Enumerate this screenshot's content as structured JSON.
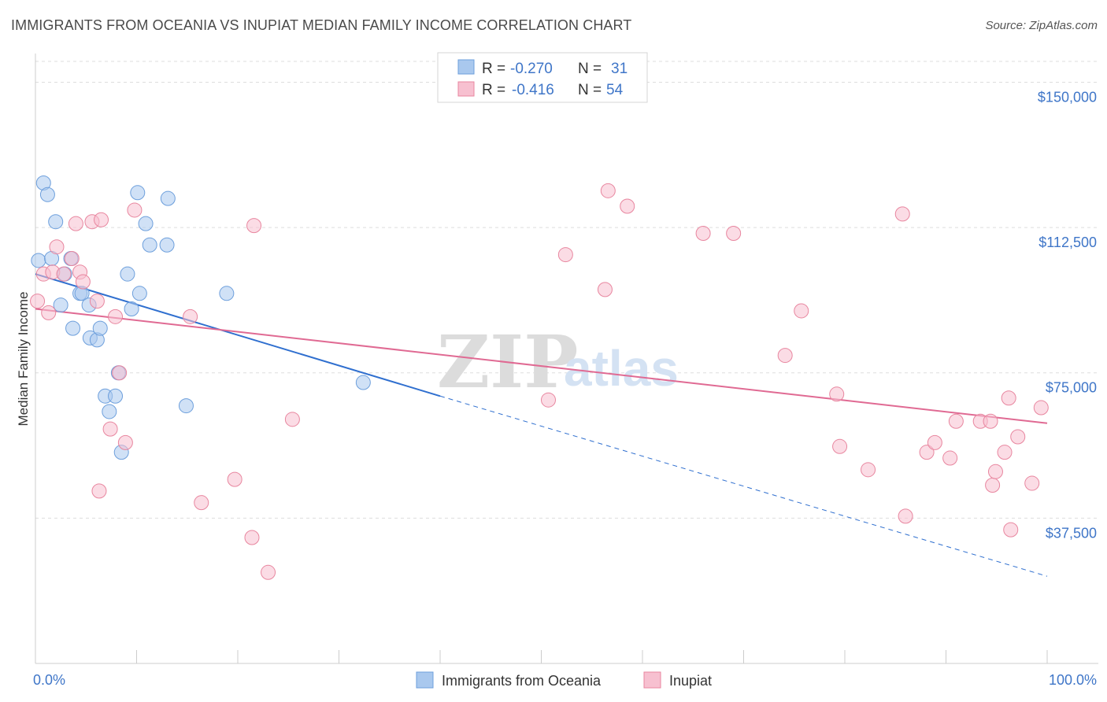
{
  "chart_data": {
    "type": "scatter",
    "title": "IMMIGRANTS FROM OCEANIA VS INUPIAT MEDIAN FAMILY INCOME CORRELATION CHART",
    "source": "Source: ZipAtlas.com",
    "xlabel": "",
    "ylabel": "Median Family Income",
    "xlim": [
      0,
      100
    ],
    "ylim": [
      0,
      157000
    ],
    "x_tick_labels": [
      "0.0%",
      "100.0%"
    ],
    "y_ticks": [
      37500,
      75000,
      112500,
      150000
    ],
    "y_tick_labels": [
      "$37,500",
      "$75,000",
      "$112,500",
      "$150,000"
    ],
    "watermark": {
      "part1": "ZIP",
      "part2": "atlas"
    },
    "legend": {
      "rows": [
        {
          "r_label": "R =",
          "r_value": "-0.270",
          "n_label": "N =",
          "n_value": "31"
        },
        {
          "r_label": "R =",
          "r_value": "-0.416",
          "n_label": "N =",
          "n_value": "54"
        }
      ]
    },
    "series": [
      {
        "name": "Immigrants from Oceania",
        "color": "#a9c8ee",
        "stroke": "#6d9fdc",
        "line_color": "#2f6fcf",
        "trend": {
          "x0": 0,
          "y0": 100500,
          "x1": 40,
          "y1": 69000,
          "dash_to_x": 100,
          "dash_to_y": 22500
        },
        "points": [
          [
            0.3,
            104000
          ],
          [
            0.8,
            124000
          ],
          [
            1.2,
            121000
          ],
          [
            1.6,
            104500
          ],
          [
            2.0,
            114000
          ],
          [
            2.5,
            92500
          ],
          [
            2.9,
            100500
          ],
          [
            3.5,
            104500
          ],
          [
            3.7,
            86500
          ],
          [
            4.4,
            95500
          ],
          [
            4.6,
            95500
          ],
          [
            5.3,
            92500
          ],
          [
            5.4,
            84000
          ],
          [
            6.1,
            83500
          ],
          [
            6.4,
            86500
          ],
          [
            6.9,
            69000
          ],
          [
            7.3,
            65000
          ],
          [
            7.9,
            69000
          ],
          [
            8.2,
            75000
          ],
          [
            8.5,
            54500
          ],
          [
            9.1,
            100500
          ],
          [
            9.5,
            91500
          ],
          [
            10.1,
            121500
          ],
          [
            10.3,
            95500
          ],
          [
            10.9,
            113500
          ],
          [
            11.3,
            108000
          ],
          [
            13.1,
            120000
          ],
          [
            13.0,
            108000
          ],
          [
            14.9,
            66500
          ],
          [
            18.9,
            95500
          ],
          [
            32.4,
            72500
          ]
        ]
      },
      {
        "name": "Inupiat",
        "color": "#f7c0d0",
        "stroke": "#e8869f",
        "line_color": "#e06a93",
        "trend": {
          "x0": 0,
          "y0": 91500,
          "x1": 100,
          "y1": 62000
        },
        "points": [
          [
            0.2,
            93500
          ],
          [
            0.8,
            100500
          ],
          [
            1.3,
            90500
          ],
          [
            1.7,
            101000
          ],
          [
            2.1,
            107500
          ],
          [
            2.8,
            100500
          ],
          [
            3.6,
            104500
          ],
          [
            4.0,
            113500
          ],
          [
            4.4,
            101000
          ],
          [
            4.7,
            98500
          ],
          [
            5.6,
            114000
          ],
          [
            6.1,
            93500
          ],
          [
            6.3,
            44500
          ],
          [
            6.5,
            114500
          ],
          [
            7.4,
            60500
          ],
          [
            7.9,
            89500
          ],
          [
            8.3,
            75000
          ],
          [
            8.9,
            57000
          ],
          [
            9.8,
            117000
          ],
          [
            15.3,
            89500
          ],
          [
            16.4,
            41500
          ],
          [
            19.7,
            47500
          ],
          [
            21.4,
            32500
          ],
          [
            21.6,
            113000
          ],
          [
            23.0,
            23500
          ],
          [
            25.4,
            63000
          ],
          [
            50.7,
            68000
          ],
          [
            52.4,
            105500
          ],
          [
            56.3,
            96500
          ],
          [
            56.6,
            122000
          ],
          [
            58.5,
            118000
          ],
          [
            66.0,
            111000
          ],
          [
            69.0,
            111000
          ],
          [
            74.1,
            79500
          ],
          [
            75.7,
            91000
          ],
          [
            79.2,
            69500
          ],
          [
            79.5,
            56000
          ],
          [
            82.3,
            50000
          ],
          [
            85.7,
            116000
          ],
          [
            86.0,
            38000
          ],
          [
            88.1,
            54500
          ],
          [
            88.9,
            57000
          ],
          [
            90.4,
            53000
          ],
          [
            91.0,
            62500
          ],
          [
            93.4,
            62500
          ],
          [
            94.4,
            62500
          ],
          [
            94.6,
            46000
          ],
          [
            94.9,
            49500
          ],
          [
            95.8,
            54500
          ],
          [
            96.2,
            68500
          ],
          [
            96.4,
            34500
          ],
          [
            97.1,
            58500
          ],
          [
            98.5,
            46500
          ],
          [
            99.4,
            66000
          ]
        ]
      }
    ]
  }
}
